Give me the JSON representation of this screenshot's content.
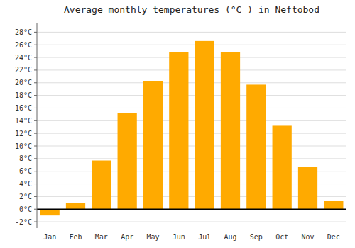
{
  "chart_data": {
    "type": "bar",
    "title": "Average monthly temperatures (°C ) in Neftobod",
    "categories": [
      "Jan",
      "Feb",
      "Mar",
      "Apr",
      "May",
      "Jun",
      "Jul",
      "Aug",
      "Sep",
      "Oct",
      "Nov",
      "Dec"
    ],
    "values": [
      -1.0,
      1.0,
      7.7,
      15.2,
      20.2,
      24.8,
      26.6,
      24.8,
      19.7,
      13.2,
      6.7,
      1.3
    ],
    "color": "#FFAA00",
    "ylim": [
      -3.0,
      29.5
    ],
    "yticks": [
      {
        "value": -2,
        "label": "-2°C"
      },
      {
        "value": 0,
        "label": "0°C"
      },
      {
        "value": 2,
        "label": "2°C"
      },
      {
        "value": 4,
        "label": "4°C"
      },
      {
        "value": 6,
        "label": "6°C"
      },
      {
        "value": 8,
        "label": "8°C"
      },
      {
        "value": 10,
        "label": "10°C"
      },
      {
        "value": 12,
        "label": "12°C"
      },
      {
        "value": 14,
        "label": "14°C"
      },
      {
        "value": 16,
        "label": "16°C"
      },
      {
        "value": 18,
        "label": "18°C"
      },
      {
        "value": 20,
        "label": "20°C"
      },
      {
        "value": 22,
        "label": "22°C"
      },
      {
        "value": 24,
        "label": "24°C"
      },
      {
        "value": 26,
        "label": "26°C"
      },
      {
        "value": 28,
        "label": "28°C"
      }
    ],
    "grid": true
  }
}
